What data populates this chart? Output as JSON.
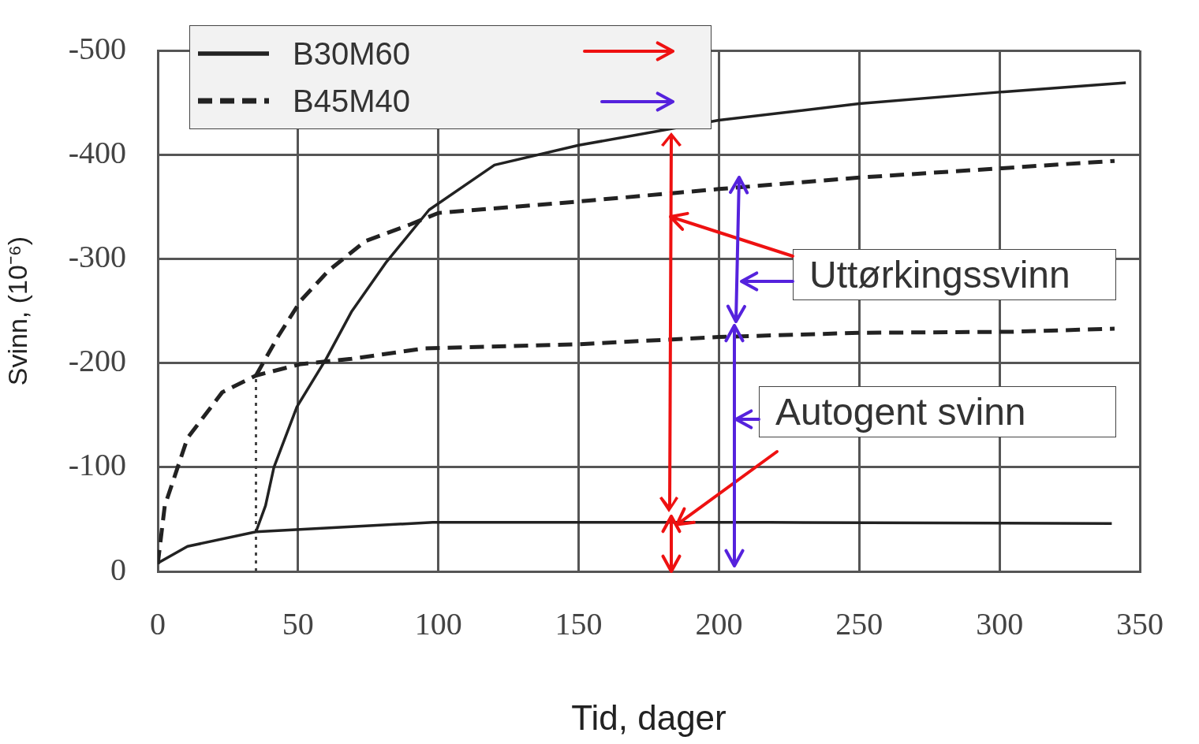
{
  "chart_data": {
    "type": "line",
    "xlabel": "Tid, dager",
    "ylabel": "Svinn, (10⁻⁶)",
    "xlim": [
      0,
      350
    ],
    "xticks": [
      0,
      50,
      100,
      150,
      200,
      250,
      300,
      350
    ],
    "ylim": [
      0,
      -500
    ],
    "yticks": [
      0,
      -100,
      -200,
      -300,
      -400,
      -500
    ],
    "grid": true,
    "legend": "top left",
    "marker": "none",
    "annotations": [
      "Uttørkingssvinn",
      {
        "text": "Autogent svinn",
        "x": 185,
        "y": -45
      }
    ],
    "series": [
      {
        "name": "B30M60",
        "color": "#222222",
        "line_style": "solid",
        "x": [
          35,
          38.4,
          41.4,
          49.6,
          60,
          69,
          81.5,
          96.7,
          120,
          150,
          200,
          250,
          300,
          345
        ],
        "values": [
          -38,
          -63,
          -100,
          -158,
          -204,
          -249,
          -297,
          -347,
          -390,
          -409,
          -433,
          -449,
          -460,
          -469
        ]
      },
      {
        "color": "#222222",
        "line_style": "solid",
        "x": [
          0,
          10.6,
          35,
          69,
          98,
          150,
          218,
          340
        ],
        "values": [
          -8,
          -24,
          -38,
          -43,
          -47,
          -47,
          -47,
          -46
        ]
      },
      {
        "name": "B45M40",
        "color": "#222222",
        "line_style": "dashed",
        "x": [
          35,
          43,
          51,
          61,
          74,
          90,
          100,
          150,
          200,
          250,
          301,
          341
        ],
        "values": [
          -188,
          -226,
          -260,
          -289,
          -317,
          -333,
          -344,
          -355,
          -367,
          -378,
          -387,
          -394
        ]
      },
      {
        "color": "#222222",
        "line_style": "dashed",
        "x": [
          0,
          2.5,
          10.6,
          23,
          35,
          51,
          69,
          95,
          150,
          200,
          250,
          305,
          341
        ],
        "values": [
          -7,
          -63,
          -128,
          -172,
          -188,
          -199,
          -204,
          -214,
          -218,
          -225,
          -229,
          -230,
          -233
        ]
      },
      {
        "color": "#444444",
        "line_style": "dotted",
        "x": [
          35,
          35
        ],
        "values": [
          0,
          -188
        ]
      }
    ]
  }
}
